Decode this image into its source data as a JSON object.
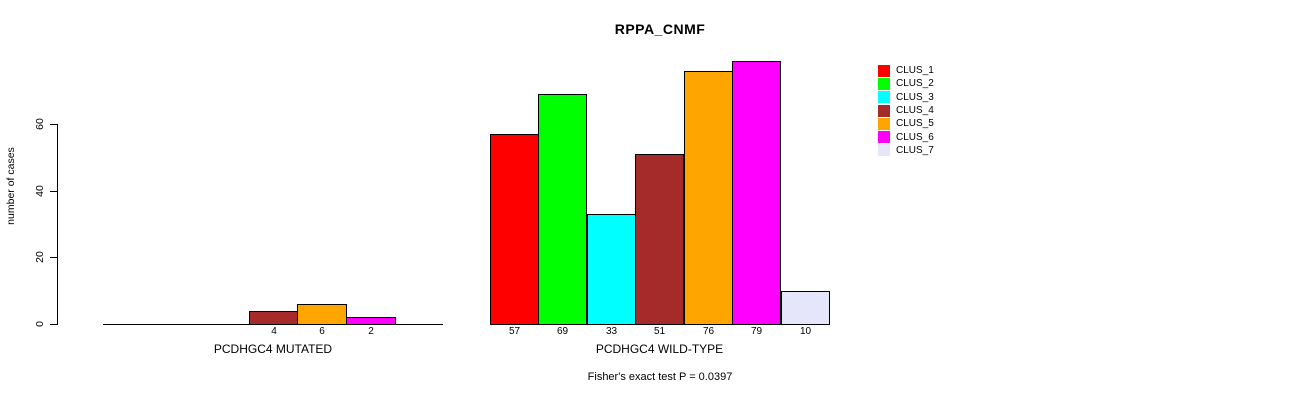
{
  "title": "RPPA_CNMF",
  "caption": "Fisher's exact test P = 0.0397",
  "ylabel": "number of cases",
  "chart_data": {
    "type": "bar",
    "title": "RPPA_CNMF",
    "xlabel": "",
    "ylabel": "number of cases",
    "yticks": [
      0,
      20,
      40,
      60
    ],
    "ylim": [
      0,
      79
    ],
    "grid": false,
    "legend_position": "right",
    "categories": [
      "CLUS_1",
      "CLUS_2",
      "CLUS_3",
      "CLUS_4",
      "CLUS_5",
      "CLUS_6",
      "CLUS_7"
    ],
    "colors": [
      "#FF0000",
      "#00FF00",
      "#00FFFF",
      "#A52A2A",
      "#FFA500",
      "#FF00FF",
      "#E6E6FA"
    ],
    "groups": [
      {
        "label": "PCDHGC4 MUTATED",
        "values": [
          0,
          0,
          0,
          4,
          6,
          2,
          0
        ]
      },
      {
        "label": "PCDHGC4 WILD-TYPE",
        "values": [
          57,
          69,
          33,
          51,
          76,
          79,
          10
        ]
      }
    ],
    "annotation": "Fisher's exact test P = 0.0397"
  },
  "legend": {
    "items": [
      {
        "label": "CLUS_1",
        "color": "#FF0000"
      },
      {
        "label": "CLUS_2",
        "color": "#00FF00"
      },
      {
        "label": "CLUS_3",
        "color": "#00FFFF"
      },
      {
        "label": "CLUS_4",
        "color": "#A52A2A"
      },
      {
        "label": "CLUS_5",
        "color": "#FFA500"
      },
      {
        "label": "CLUS_6",
        "color": "#FF00FF"
      },
      {
        "label": "CLUS_7",
        "color": "#E6E6FA"
      }
    ]
  }
}
